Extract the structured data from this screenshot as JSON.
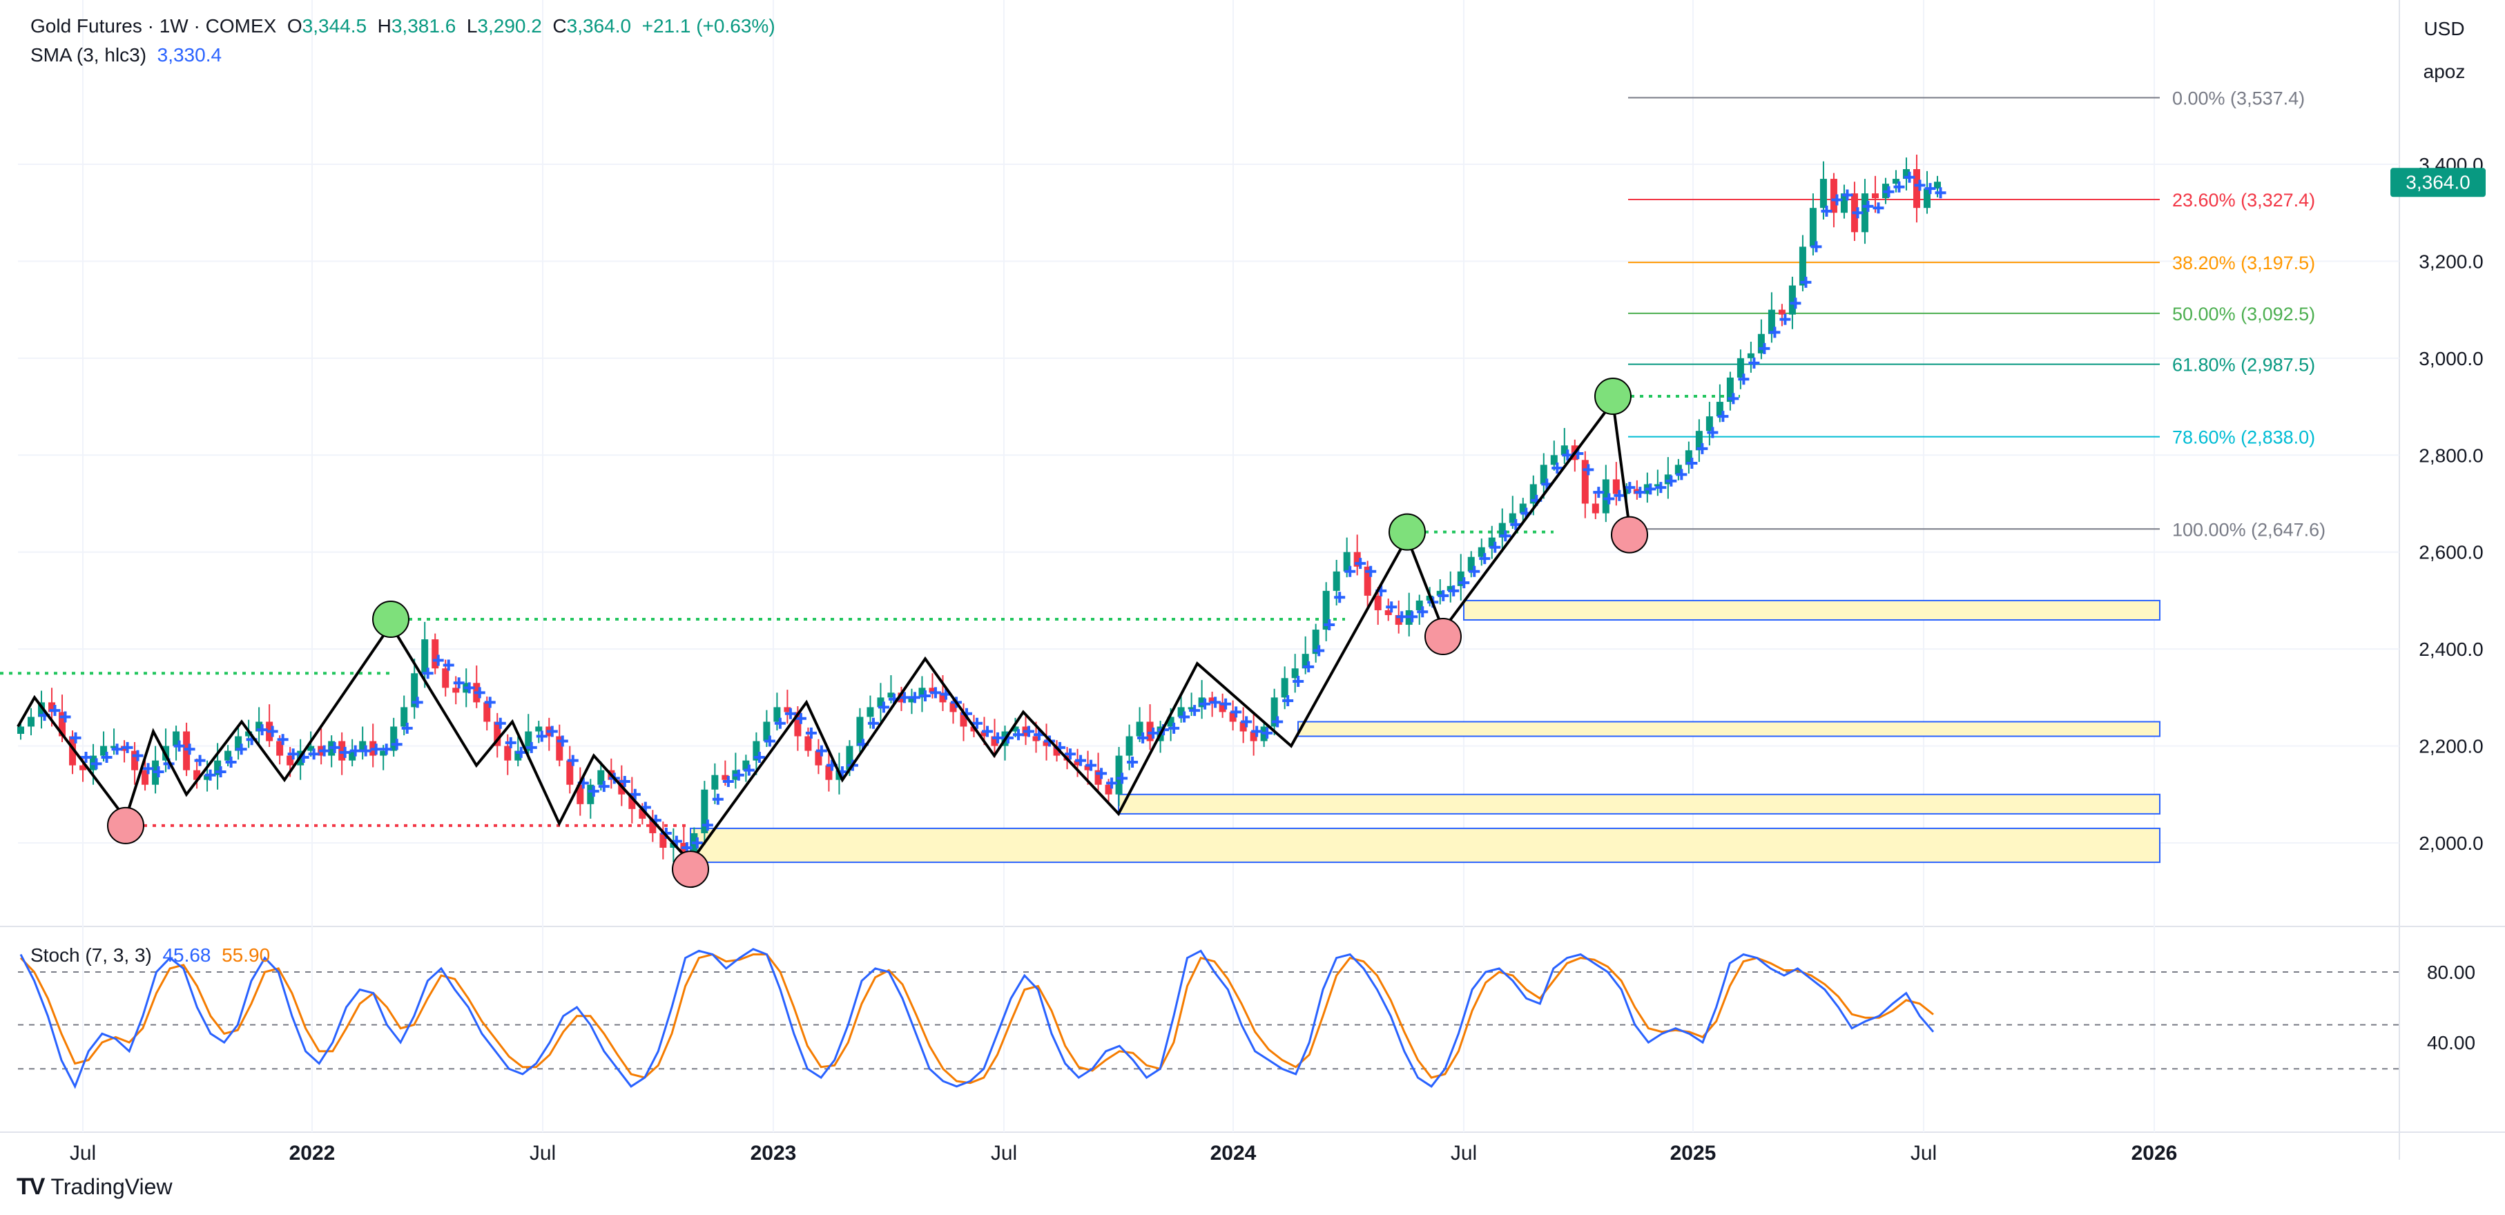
{
  "header": {
    "symbol": "Gold Futures · 1W · COMEX",
    "o_label": "O",
    "o_val": "3,344.5",
    "h_label": "H",
    "h_val": "3,381.6",
    "l_label": "L",
    "l_val": "3,290.2",
    "c_label": "C",
    "c_val": "3,364.0",
    "change": "+21.1 (+0.63%)",
    "sma_label": "SMA (3, hlc3)",
    "sma_val": "3,330.4"
  },
  "currency": "USD",
  "scale_mode": "apoz",
  "last_price": "3,364.0",
  "stoch": {
    "label": "Stoch (7, 3, 3)",
    "k": "45.68",
    "d": "55.90",
    "levels": [
      "80.00",
      "40.00"
    ]
  },
  "branding": "TradingView",
  "colors": {
    "up": "#089981",
    "down": "#f23645",
    "sma": "#2962ff",
    "stoch_k": "#2962ff",
    "stoch_d": "#f57c00",
    "zone": "#fff7c4"
  },
  "chart_data": {
    "type": "candlestick",
    "price_axis": {
      "ticks": [
        2000,
        2200,
        2400,
        2600,
        2800,
        3000,
        3200,
        3400
      ],
      "tick_labels": [
        "2,000.0",
        "2,200.0",
        "2,400.0",
        "2,600.0",
        "2,800.0",
        "3,000.0",
        "3,200.0",
        "3,400.0"
      ],
      "range": [
        1900,
        3560
      ]
    },
    "time_axis": {
      "labels": [
        "Jul",
        "2022",
        "Jul",
        "2023",
        "Jul",
        "2024",
        "Jul",
        "2025",
        "Jul",
        "2026"
      ]
    },
    "fibonacci": [
      {
        "label": "0.00% (3,537.4)",
        "price": 3537.4,
        "color": "#787b86"
      },
      {
        "label": "23.60% (3,327.4)",
        "price": 3327.4,
        "color": "#f23645"
      },
      {
        "label": "38.20% (3,197.5)",
        "price": 3197.5,
        "color": "#ff9800"
      },
      {
        "label": "50.00% (3,092.5)",
        "price": 3092.5,
        "color": "#4caf50"
      },
      {
        "label": "61.80% (2,987.5)",
        "price": 2987.5,
        "color": "#089981"
      },
      {
        "label": "78.60% (2,838.0)",
        "price": 2838.0,
        "color": "#00bcd4"
      },
      {
        "label": "100.00% (2,647.6)",
        "price": 2647.6,
        "color": "#787b86"
      }
    ],
    "zigzag_prices": [
      2240,
      2300,
      2050,
      2230,
      2100,
      2250,
      2130,
      2450,
      2160,
      2250,
      2040,
      2180,
      1960,
      2290,
      2130,
      2380,
      2180,
      2270,
      2060,
      2370,
      2200,
      2630,
      2440,
      2910,
      2650
    ],
    "pivots": [
      {
        "type": "low",
        "price": 2050
      },
      {
        "type": "high",
        "price": 2450
      },
      {
        "type": "low",
        "price": 1960
      },
      {
        "type": "high",
        "price": 2630
      },
      {
        "type": "low",
        "price": 2440
      },
      {
        "type": "high",
        "price": 2910
      },
      {
        "type": "low",
        "price": 2650
      }
    ],
    "demand_zones": [
      {
        "low": 2460,
        "high": 2500
      },
      {
        "low": 2220,
        "high": 2250
      },
      {
        "low": 2060,
        "high": 2100
      },
      {
        "low": 1960,
        "high": 2030
      }
    ],
    "weekly_closes": [
      2240,
      2260,
      2290,
      2270,
      2220,
      2160,
      2150,
      2180,
      2200,
      2200,
      2190,
      2150,
      2120,
      2170,
      2200,
      2230,
      2150,
      2130,
      2140,
      2170,
      2190,
      2220,
      2230,
      2250,
      2210,
      2180,
      2160,
      2190,
      2200,
      2180,
      2210,
      2170,
      2190,
      2210,
      2180,
      2190,
      2240,
      2280,
      2350,
      2420,
      2360,
      2320,
      2310,
      2330,
      2290,
      2250,
      2200,
      2170,
      2190,
      2230,
      2240,
      2220,
      2170,
      2120,
      2080,
      2120,
      2150,
      2130,
      2100,
      2070,
      2050,
      2020,
      1990,
      2000,
      1980,
      2020,
      2110,
      2140,
      2130,
      2150,
      2170,
      2210,
      2250,
      2280,
      2270,
      2220,
      2190,
      2160,
      2130,
      2150,
      2200,
      2260,
      2280,
      2300,
      2310,
      2290,
      2300,
      2320,
      2310,
      2290,
      2270,
      2240,
      2230,
      2220,
      2200,
      2230,
      2240,
      2220,
      2210,
      2200,
      2180,
      2170,
      2160,
      2150,
      2120,
      2100,
      2180,
      2220,
      2250,
      2210,
      2240,
      2260,
      2280,
      2280,
      2300,
      2290,
      2270,
      2250,
      2230,
      2210,
      2240,
      2300,
      2340,
      2360,
      2390,
      2440,
      2520,
      2560,
      2600,
      2570,
      2510,
      2480,
      2470,
      2450,
      2480,
      2500,
      2510,
      2520,
      2530,
      2560,
      2590,
      2610,
      2630,
      2660,
      2680,
      2700,
      2740,
      2780,
      2800,
      2820,
      2790,
      2700,
      2680,
      2750,
      2720,
      2730,
      2720,
      2740,
      2740,
      2760,
      2780,
      2810,
      2850,
      2880,
      2910,
      2960,
      3000,
      3010,
      3050,
      3100,
      3090,
      3150,
      3230,
      3310,
      3370,
      3300,
      3340,
      3260,
      3340,
      3330,
      3360,
      3370,
      3390,
      3310,
      3350,
      3364
    ],
    "stoch_k_values": [
      90,
      75,
      55,
      30,
      15,
      35,
      45,
      42,
      35,
      55,
      80,
      88,
      82,
      60,
      45,
      40,
      50,
      75,
      88,
      80,
      55,
      35,
      28,
      40,
      60,
      70,
      68,
      50,
      40,
      55,
      75,
      82,
      70,
      60,
      45,
      35,
      25,
      22,
      28,
      40,
      55,
      60,
      50,
      35,
      25,
      15,
      20,
      35,
      60,
      88,
      92,
      90,
      82,
      88,
      93,
      90,
      70,
      45,
      25,
      20,
      30,
      50,
      75,
      82,
      80,
      65,
      45,
      25,
      18,
      15,
      18,
      25,
      45,
      65,
      78,
      70,
      45,
      28,
      20,
      25,
      35,
      38,
      30,
      20,
      25,
      55,
      88,
      92,
      80,
      70,
      50,
      35,
      30,
      25,
      22,
      40,
      70,
      88,
      90,
      82,
      70,
      55,
      35,
      20,
      15,
      25,
      45,
      70,
      80,
      82,
      75,
      65,
      62,
      82,
      88,
      90,
      85,
      80,
      70,
      50,
      40,
      45,
      48,
      45,
      40,
      60,
      85,
      90,
      88,
      82,
      78,
      82,
      76,
      70,
      60,
      48,
      52,
      55,
      62,
      68,
      55,
      46
    ],
    "stoch_d_values": [
      88,
      80,
      65,
      45,
      28,
      30,
      40,
      43,
      40,
      48,
      68,
      82,
      84,
      72,
      55,
      45,
      47,
      62,
      80,
      82,
      68,
      48,
      35,
      35,
      48,
      62,
      68,
      60,
      48,
      50,
      65,
      78,
      76,
      65,
      52,
      42,
      32,
      26,
      26,
      33,
      46,
      55,
      55,
      45,
      33,
      22,
      20,
      27,
      45,
      72,
      88,
      90,
      86,
      87,
      90,
      90,
      80,
      60,
      38,
      26,
      27,
      40,
      62,
      77,
      81,
      73,
      56,
      38,
      25,
      18,
      17,
      20,
      33,
      52,
      70,
      72,
      58,
      38,
      26,
      24,
      30,
      35,
      34,
      27,
      25,
      40,
      72,
      88,
      86,
      76,
      62,
      46,
      36,
      30,
      26,
      33,
      55,
      78,
      88,
      86,
      78,
      64,
      46,
      30,
      20,
      22,
      35,
      58,
      74,
      80,
      78,
      70,
      65,
      75,
      85,
      88,
      87,
      83,
      75,
      60,
      48,
      46,
      47,
      46,
      43,
      52,
      72,
      86,
      88,
      85,
      81,
      81,
      78,
      73,
      66,
      56,
      54,
      54,
      58,
      64,
      62,
      55.9
    ]
  }
}
